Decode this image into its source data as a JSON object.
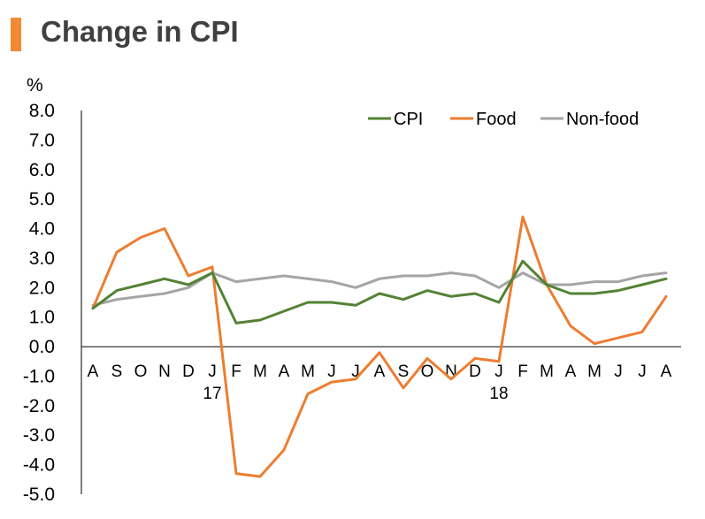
{
  "title": "Change in CPI",
  "colors": {
    "accent": "#f08a33",
    "title_text": "#404040",
    "axis": "#000000"
  },
  "chart_data": {
    "type": "line",
    "title": "Change in CPI",
    "ylabel": "%",
    "xlabel": "",
    "ylim": [
      -5.0,
      8.0
    ],
    "yticks": [
      "8.0",
      "7.0",
      "6.0",
      "5.0",
      "4.0",
      "3.0",
      "2.0",
      "1.0",
      "0.0",
      "-1.0",
      "-2.0",
      "-3.0",
      "-4.0",
      "-5.0"
    ],
    "categories": [
      "A",
      "S",
      "O",
      "N",
      "D",
      "J",
      "F",
      "M",
      "A",
      "M",
      "J",
      "J",
      "A",
      "S",
      "O",
      "N",
      "D",
      "J",
      "F",
      "M",
      "A",
      "M",
      "J",
      "J",
      "A"
    ],
    "year_labels": [
      {
        "index": 5,
        "label": "17"
      },
      {
        "index": 17,
        "label": "18"
      }
    ],
    "grid": false,
    "legend_position": "top-right",
    "series": [
      {
        "name": "CPI",
        "color": "#548235",
        "values": [
          1.3,
          1.9,
          2.1,
          2.3,
          2.1,
          2.5,
          0.8,
          0.9,
          1.2,
          1.5,
          1.5,
          1.4,
          1.8,
          1.6,
          1.9,
          1.7,
          1.8,
          1.5,
          2.9,
          2.1,
          1.8,
          1.8,
          1.9,
          2.1,
          2.3
        ]
      },
      {
        "name": "Food",
        "color": "#ed7d31",
        "values": [
          1.3,
          3.2,
          3.7,
          4.0,
          2.4,
          2.7,
          -4.3,
          -4.4,
          -3.5,
          -1.6,
          -1.2,
          -1.1,
          -0.2,
          -1.4,
          -0.4,
          -1.1,
          -0.4,
          -0.5,
          4.4,
          2.1,
          0.7,
          0.1,
          0.3,
          0.5,
          1.7
        ]
      },
      {
        "name": "Non-food",
        "color": "#a5a5a5",
        "values": [
          1.4,
          1.6,
          1.7,
          1.8,
          2.0,
          2.5,
          2.2,
          2.3,
          2.4,
          2.3,
          2.2,
          2.0,
          2.3,
          2.4,
          2.4,
          2.5,
          2.4,
          2.0,
          2.5,
          2.1,
          2.1,
          2.2,
          2.2,
          2.4,
          2.5
        ]
      }
    ]
  }
}
